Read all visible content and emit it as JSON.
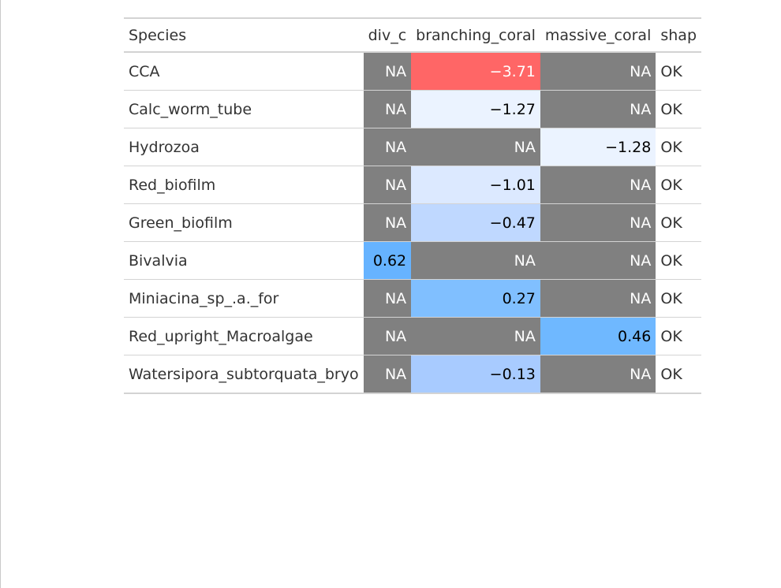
{
  "table": {
    "columns": [
      "Species",
      "div_c",
      "branching_coral",
      "massive_coral",
      "shap"
    ],
    "rows": [
      {
        "species": "CCA",
        "div_c": {
          "text": "NA",
          "na": true
        },
        "branching_coral": {
          "text": "−3.71",
          "na": false,
          "bg": "#ff6666",
          "fg": "#ffffff"
        },
        "massive_coral": {
          "text": "NA",
          "na": true
        },
        "shap": "OK"
      },
      {
        "species": "Calc_worm_tube",
        "div_c": {
          "text": "NA",
          "na": true
        },
        "branching_coral": {
          "text": "−1.27",
          "na": false,
          "bg": "#ebf3ff",
          "fg": "#000000"
        },
        "massive_coral": {
          "text": "NA",
          "na": true
        },
        "shap": "OK"
      },
      {
        "species": "Hydrozoa",
        "div_c": {
          "text": "NA",
          "na": true
        },
        "branching_coral": {
          "text": "NA",
          "na": true
        },
        "massive_coral": {
          "text": "−1.28",
          "na": false,
          "bg": "#ebf3ff",
          "fg": "#000000"
        },
        "shap": "OK"
      },
      {
        "species": "Red_biofilm",
        "div_c": {
          "text": "NA",
          "na": true
        },
        "branching_coral": {
          "text": "−1.01",
          "na": false,
          "bg": "#dce9ff",
          "fg": "#000000"
        },
        "massive_coral": {
          "text": "NA",
          "na": true
        },
        "shap": "OK"
      },
      {
        "species": "Green_biofilm",
        "div_c": {
          "text": "NA",
          "na": true
        },
        "branching_coral": {
          "text": "−0.47",
          "na": false,
          "bg": "#bfd8ff",
          "fg": "#000000"
        },
        "massive_coral": {
          "text": "NA",
          "na": true
        },
        "shap": "OK"
      },
      {
        "species": "Bivalvia",
        "div_c": {
          "text": "0.62",
          "na": false,
          "bg": "#66b3ff",
          "fg": "#000000"
        },
        "branching_coral": {
          "text": "NA",
          "na": true
        },
        "massive_coral": {
          "text": "NA",
          "na": true
        },
        "shap": "OK"
      },
      {
        "species": "Miniacina_sp_.a._for",
        "div_c": {
          "text": "NA",
          "na": true
        },
        "branching_coral": {
          "text": "0.27",
          "na": false,
          "bg": "#80bfff",
          "fg": "#000000"
        },
        "massive_coral": {
          "text": "NA",
          "na": true
        },
        "shap": "OK"
      },
      {
        "species": "Red_upright_Macroalgae",
        "div_c": {
          "text": "NA",
          "na": true
        },
        "branching_coral": {
          "text": "NA",
          "na": true
        },
        "massive_coral": {
          "text": "0.46",
          "na": false,
          "bg": "#6fb8ff",
          "fg": "#000000"
        },
        "shap": "OK"
      },
      {
        "species": "Watersipora_subtorquata_bryo",
        "div_c": {
          "text": "NA",
          "na": true
        },
        "branching_coral": {
          "text": "−0.13",
          "na": false,
          "bg": "#a8cbff",
          "fg": "#000000"
        },
        "massive_coral": {
          "text": "NA",
          "na": true
        },
        "shap": "OK"
      }
    ]
  },
  "colors": {
    "na_background": "#808080",
    "na_text": "#ffffff",
    "negative_strong": "#ff6666",
    "positive": "#66b3ff"
  }
}
